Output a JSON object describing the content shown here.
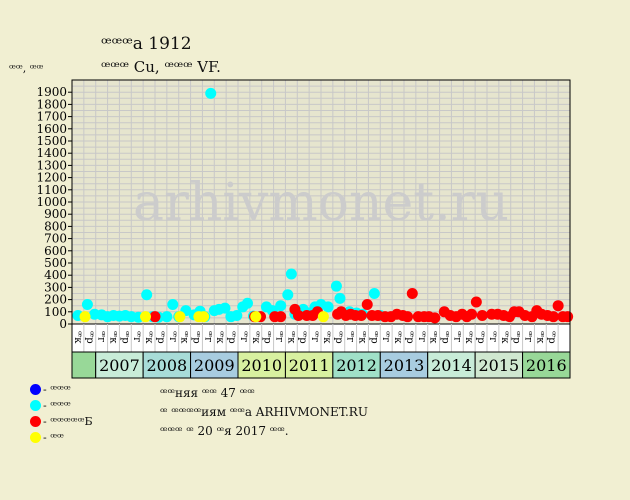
{
  "header": {
    "title": "ꟹꟹꟹа 1912",
    "subtitle": "ꟹꟹꟹ Cu, ꟹꟹꟹ VF.",
    "unit_label": "ꟹꟹ, ꟹꟹ"
  },
  "legend": {
    "items": [
      {
        "color": "#0000ff",
        "label": "- ꟹꟹꟹ"
      },
      {
        "color": "#00ffff",
        "label": "- ꟹꟹꟹ"
      },
      {
        "color": "#ff0000",
        "label": "- ꟹꟹꟹꟹꟹБ"
      },
      {
        "color": "#ffff00",
        "label": "- ꟹꟹ"
      }
    ]
  },
  "notes": {
    "line1": "ꟹꟹняя ꟹꟹ 47 ꟹꟹ",
    "line2": "ꟹ ꟹꟹꟹꟹиям ꟹꟹа ARHIVMONET.RU",
    "line3": "ꟹꟹꟹ ꟹ 20 ꟹя 2017 ꟹꟹ."
  },
  "watermark": "arhivmonet.ru",
  "colors": {
    "background": "#f1efd2",
    "plot_background": "#e6e5ce",
    "grid": "#c8c8c8",
    "axis": "#000000",
    "watermark": "#cccccc",
    "year_colors": [
      "#98d898",
      "#c8ecd8",
      "#a8dcd8",
      "#a8cce0",
      "#d8f0a0",
      "#d8f0a0",
      "#a0e0c8",
      "#a8cce0",
      "#c8ecd8",
      "#d0e8d0"
    ]
  },
  "chart_data": {
    "type": "scatter",
    "ylim": [
      0,
      2000
    ],
    "yticks": [
      0,
      100,
      200,
      300,
      400,
      500,
      600,
      700,
      800,
      900,
      1000,
      1100,
      1200,
      1300,
      1400,
      1500,
      1600,
      1700,
      1800,
      1900
    ],
    "x_months": [
      "ꟹк",
      "ꟹр",
      "ꟹг",
      "ꟹк",
      "ꟹр",
      "ꟹг",
      "ꟹк",
      "ꟹр",
      "ꟹг",
      "ꟹк",
      "ꟹр",
      "ꟹг",
      "ꟹк",
      "ꟹр",
      "ꟹг",
      "ꟹк",
      "ꟹр",
      "ꟹг",
      "ꟹк",
      "ꟹр",
      "ꟹг",
      "ꟹк",
      "ꟹр",
      "ꟹг",
      "ꟹк",
      "ꟹр",
      "ꟹг",
      "ꟹк",
      "ꟹр",
      "ꟹг",
      "ꟹк",
      "ꟹр",
      "ꟹг",
      "ꟹк",
      "ꟹр",
      "ꟹг",
      "ꟹк",
      "ꟹр",
      "ꟹг",
      "ꟹк",
      "ꟹр"
    ],
    "year_groups": [
      {
        "label": "",
        "start": 0,
        "end": 2
      },
      {
        "label": "2007",
        "start": 2,
        "end": 6
      },
      {
        "label": "2008",
        "start": 6,
        "end": 10
      },
      {
        "label": "2009",
        "start": 10,
        "end": 14
      },
      {
        "label": "2010",
        "start": 14,
        "end": 18
      },
      {
        "label": "2011",
        "start": 18,
        "end": 22
      },
      {
        "label": "2012",
        "start": 22,
        "end": 26
      },
      {
        "label": "2013",
        "start": 26,
        "end": 30
      },
      {
        "label": "2014",
        "start": 30,
        "end": 34
      },
      {
        "label": "2015",
        "start": 34,
        "end": 38
      },
      {
        "label": "2016",
        "start": 38,
        "end": 42
      }
    ],
    "x_range": [
      0,
      42
    ],
    "series": [
      {
        "color": "#00ffff",
        "points": [
          [
            0.5,
            70
          ],
          [
            1.3,
            160
          ],
          [
            1.9,
            80
          ],
          [
            2.5,
            75
          ],
          [
            3.0,
            60
          ],
          [
            3.5,
            70
          ],
          [
            4.0,
            65
          ],
          [
            4.5,
            70
          ],
          [
            5.0,
            60
          ],
          [
            5.6,
            55
          ],
          [
            6.3,
            240
          ],
          [
            6.8,
            60
          ],
          [
            7.3,
            55
          ],
          [
            8.0,
            60
          ],
          [
            8.5,
            160
          ],
          [
            9.0,
            60
          ],
          [
            9.6,
            110
          ],
          [
            10.3,
            75
          ],
          [
            10.8,
            105
          ],
          [
            11.2,
            60
          ],
          [
            11.7,
            1890
          ],
          [
            12.0,
            110
          ],
          [
            12.4,
            120
          ],
          [
            12.9,
            130
          ],
          [
            13.4,
            60
          ],
          [
            13.9,
            70
          ],
          [
            14.4,
            140
          ],
          [
            14.8,
            170
          ],
          [
            15.3,
            65
          ],
          [
            15.8,
            60
          ],
          [
            16.4,
            140
          ],
          [
            16.9,
            110
          ],
          [
            17.6,
            150
          ],
          [
            18.2,
            240
          ],
          [
            18.5,
            410
          ],
          [
            18.8,
            80
          ],
          [
            19.5,
            120
          ],
          [
            20.0,
            90
          ],
          [
            20.5,
            140
          ],
          [
            21.0,
            160
          ],
          [
            21.6,
            140
          ],
          [
            22.3,
            310
          ],
          [
            22.6,
            210
          ],
          [
            23.4,
            100
          ],
          [
            24.0,
            90
          ],
          [
            24.5,
            80
          ],
          [
            25.5,
            250
          ],
          [
            26.0,
            70
          ]
        ]
      },
      {
        "color": "#ff0000",
        "points": [
          [
            7.0,
            60
          ],
          [
            15.4,
            60
          ],
          [
            15.9,
            60
          ],
          [
            17.1,
            60
          ],
          [
            17.6,
            60
          ],
          [
            18.8,
            120
          ],
          [
            19.1,
            70
          ],
          [
            19.8,
            70
          ],
          [
            20.3,
            70
          ],
          [
            20.7,
            100
          ],
          [
            22.4,
            80
          ],
          [
            22.7,
            100
          ],
          [
            23.1,
            70
          ],
          [
            23.5,
            80
          ],
          [
            23.9,
            70
          ],
          [
            24.4,
            70
          ],
          [
            24.9,
            160
          ],
          [
            25.3,
            70
          ],
          [
            25.8,
            70
          ],
          [
            26.4,
            60
          ],
          [
            26.9,
            60
          ],
          [
            27.4,
            80
          ],
          [
            27.9,
            70
          ],
          [
            28.3,
            60
          ],
          [
            28.7,
            250
          ],
          [
            29.2,
            60
          ],
          [
            29.7,
            60
          ],
          [
            30.1,
            60
          ],
          [
            30.6,
            50
          ],
          [
            31.4,
            100
          ],
          [
            31.9,
            70
          ],
          [
            32.4,
            60
          ],
          [
            32.9,
            80
          ],
          [
            33.3,
            60
          ],
          [
            33.7,
            80
          ],
          [
            34.1,
            180
          ],
          [
            34.6,
            70
          ],
          [
            35.4,
            80
          ],
          [
            35.9,
            80
          ],
          [
            36.4,
            70
          ],
          [
            36.9,
            60
          ],
          [
            37.3,
            100
          ],
          [
            37.7,
            100
          ],
          [
            38.2,
            70
          ],
          [
            38.8,
            60
          ],
          [
            39.2,
            110
          ],
          [
            39.6,
            80
          ],
          [
            40.1,
            70
          ],
          [
            40.6,
            60
          ],
          [
            41.0,
            150
          ],
          [
            41.4,
            60
          ],
          [
            41.8,
            60
          ]
        ]
      },
      {
        "color": "#ffff00",
        "points": [
          [
            1.1,
            60
          ],
          [
            6.2,
            60
          ],
          [
            9.1,
            60
          ],
          [
            10.7,
            60
          ],
          [
            11.1,
            60
          ],
          [
            15.5,
            60
          ],
          [
            21.2,
            60
          ]
        ]
      }
    ]
  }
}
